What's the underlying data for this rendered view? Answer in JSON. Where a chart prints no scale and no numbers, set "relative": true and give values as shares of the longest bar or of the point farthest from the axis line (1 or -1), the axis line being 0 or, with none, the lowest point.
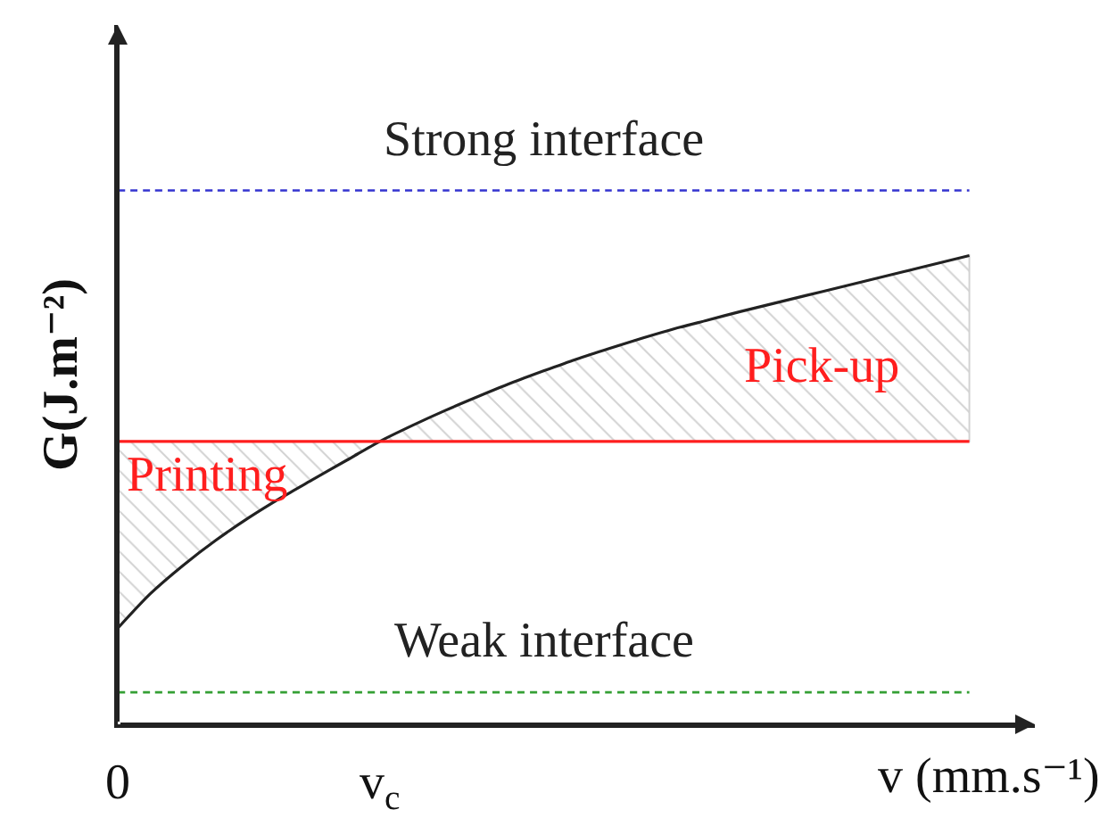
{
  "chart_data": {
    "type": "line",
    "relative": true,
    "xlabel": "v (mm.s⁻¹)",
    "ylabel": "G(J.m⁻²)",
    "categories": [
      "0",
      null,
      null,
      null,
      null,
      null,
      null,
      null,
      "v$_{c}$",
      null,
      null,
      null,
      null,
      null,
      null,
      null,
      null,
      null,
      null,
      null,
      null,
      null,
      null,
      null,
      null,
      null,
      null
    ],
    "series": [
      {
        "name": "Strong interface",
        "color": "#3434d0",
        "line_style": "dashed",
        "values": [
          1,
          1,
          1,
          1,
          1,
          1,
          1,
          1,
          1,
          1,
          1,
          1,
          1,
          1,
          1,
          1,
          1,
          1,
          1,
          1,
          1,
          1,
          1,
          1,
          1,
          1,
          1
        ]
      },
      {
        "color": "#222222",
        "values": [
          0.18,
          0.245,
          0.298,
          0.345,
          0.387,
          0.425,
          0.46,
          0.495,
          0.53,
          0.56,
          0.588,
          0.614,
          0.639,
          0.662,
          0.684,
          0.704,
          0.723,
          0.741,
          0.757,
          0.773,
          0.788,
          0.803,
          0.818,
          0.833,
          0.848,
          0.863,
          0.878
        ],
        "lower": [
          0.18,
          0.245,
          0.298,
          0.345,
          0.387,
          0.425,
          0.46,
          0.495,
          0.53,
          0.53,
          0.53,
          0.53,
          0.53,
          0.53,
          0.53,
          0.53,
          0.53,
          0.53,
          0.53,
          0.53,
          0.53,
          0.53,
          0.53,
          0.53,
          0.53,
          0.53,
          0.53
        ],
        "upper": [
          0.53,
          0.53,
          0.53,
          0.53,
          0.53,
          0.53,
          0.53,
          0.53,
          0.53,
          0.56,
          0.588,
          0.614,
          0.639,
          0.662,
          0.684,
          0.704,
          0.723,
          0.741,
          0.757,
          0.773,
          0.788,
          0.803,
          0.818,
          0.833,
          0.848,
          0.863,
          0.878
        ]
      },
      {
        "color": "#ff1e1e",
        "values": [
          0.53,
          0.53,
          0.53,
          0.53,
          0.53,
          0.53,
          0.53,
          0.53,
          0.53,
          0.53,
          0.53,
          0.53,
          0.53,
          0.53,
          0.53,
          0.53,
          0.53,
          0.53,
          0.53,
          0.53,
          0.53,
          0.53,
          0.53,
          0.53,
          0.53,
          0.53,
          0.53
        ]
      },
      {
        "name": "Weak interface",
        "color": "#35a035",
        "line_style": "dashed",
        "values": [
          0.06,
          0.06,
          0.06,
          0.06,
          0.06,
          0.06,
          0.06,
          0.06,
          0.06,
          0.06,
          0.06,
          0.06,
          0.06,
          0.06,
          0.06,
          0.06,
          0.06,
          0.06,
          0.06,
          0.06,
          0.06,
          0.06,
          0.06,
          0.06,
          0.06,
          0.06,
          0.06
        ]
      }
    ],
    "annotations": [
      "Printing",
      "Pick-up"
    ]
  }
}
